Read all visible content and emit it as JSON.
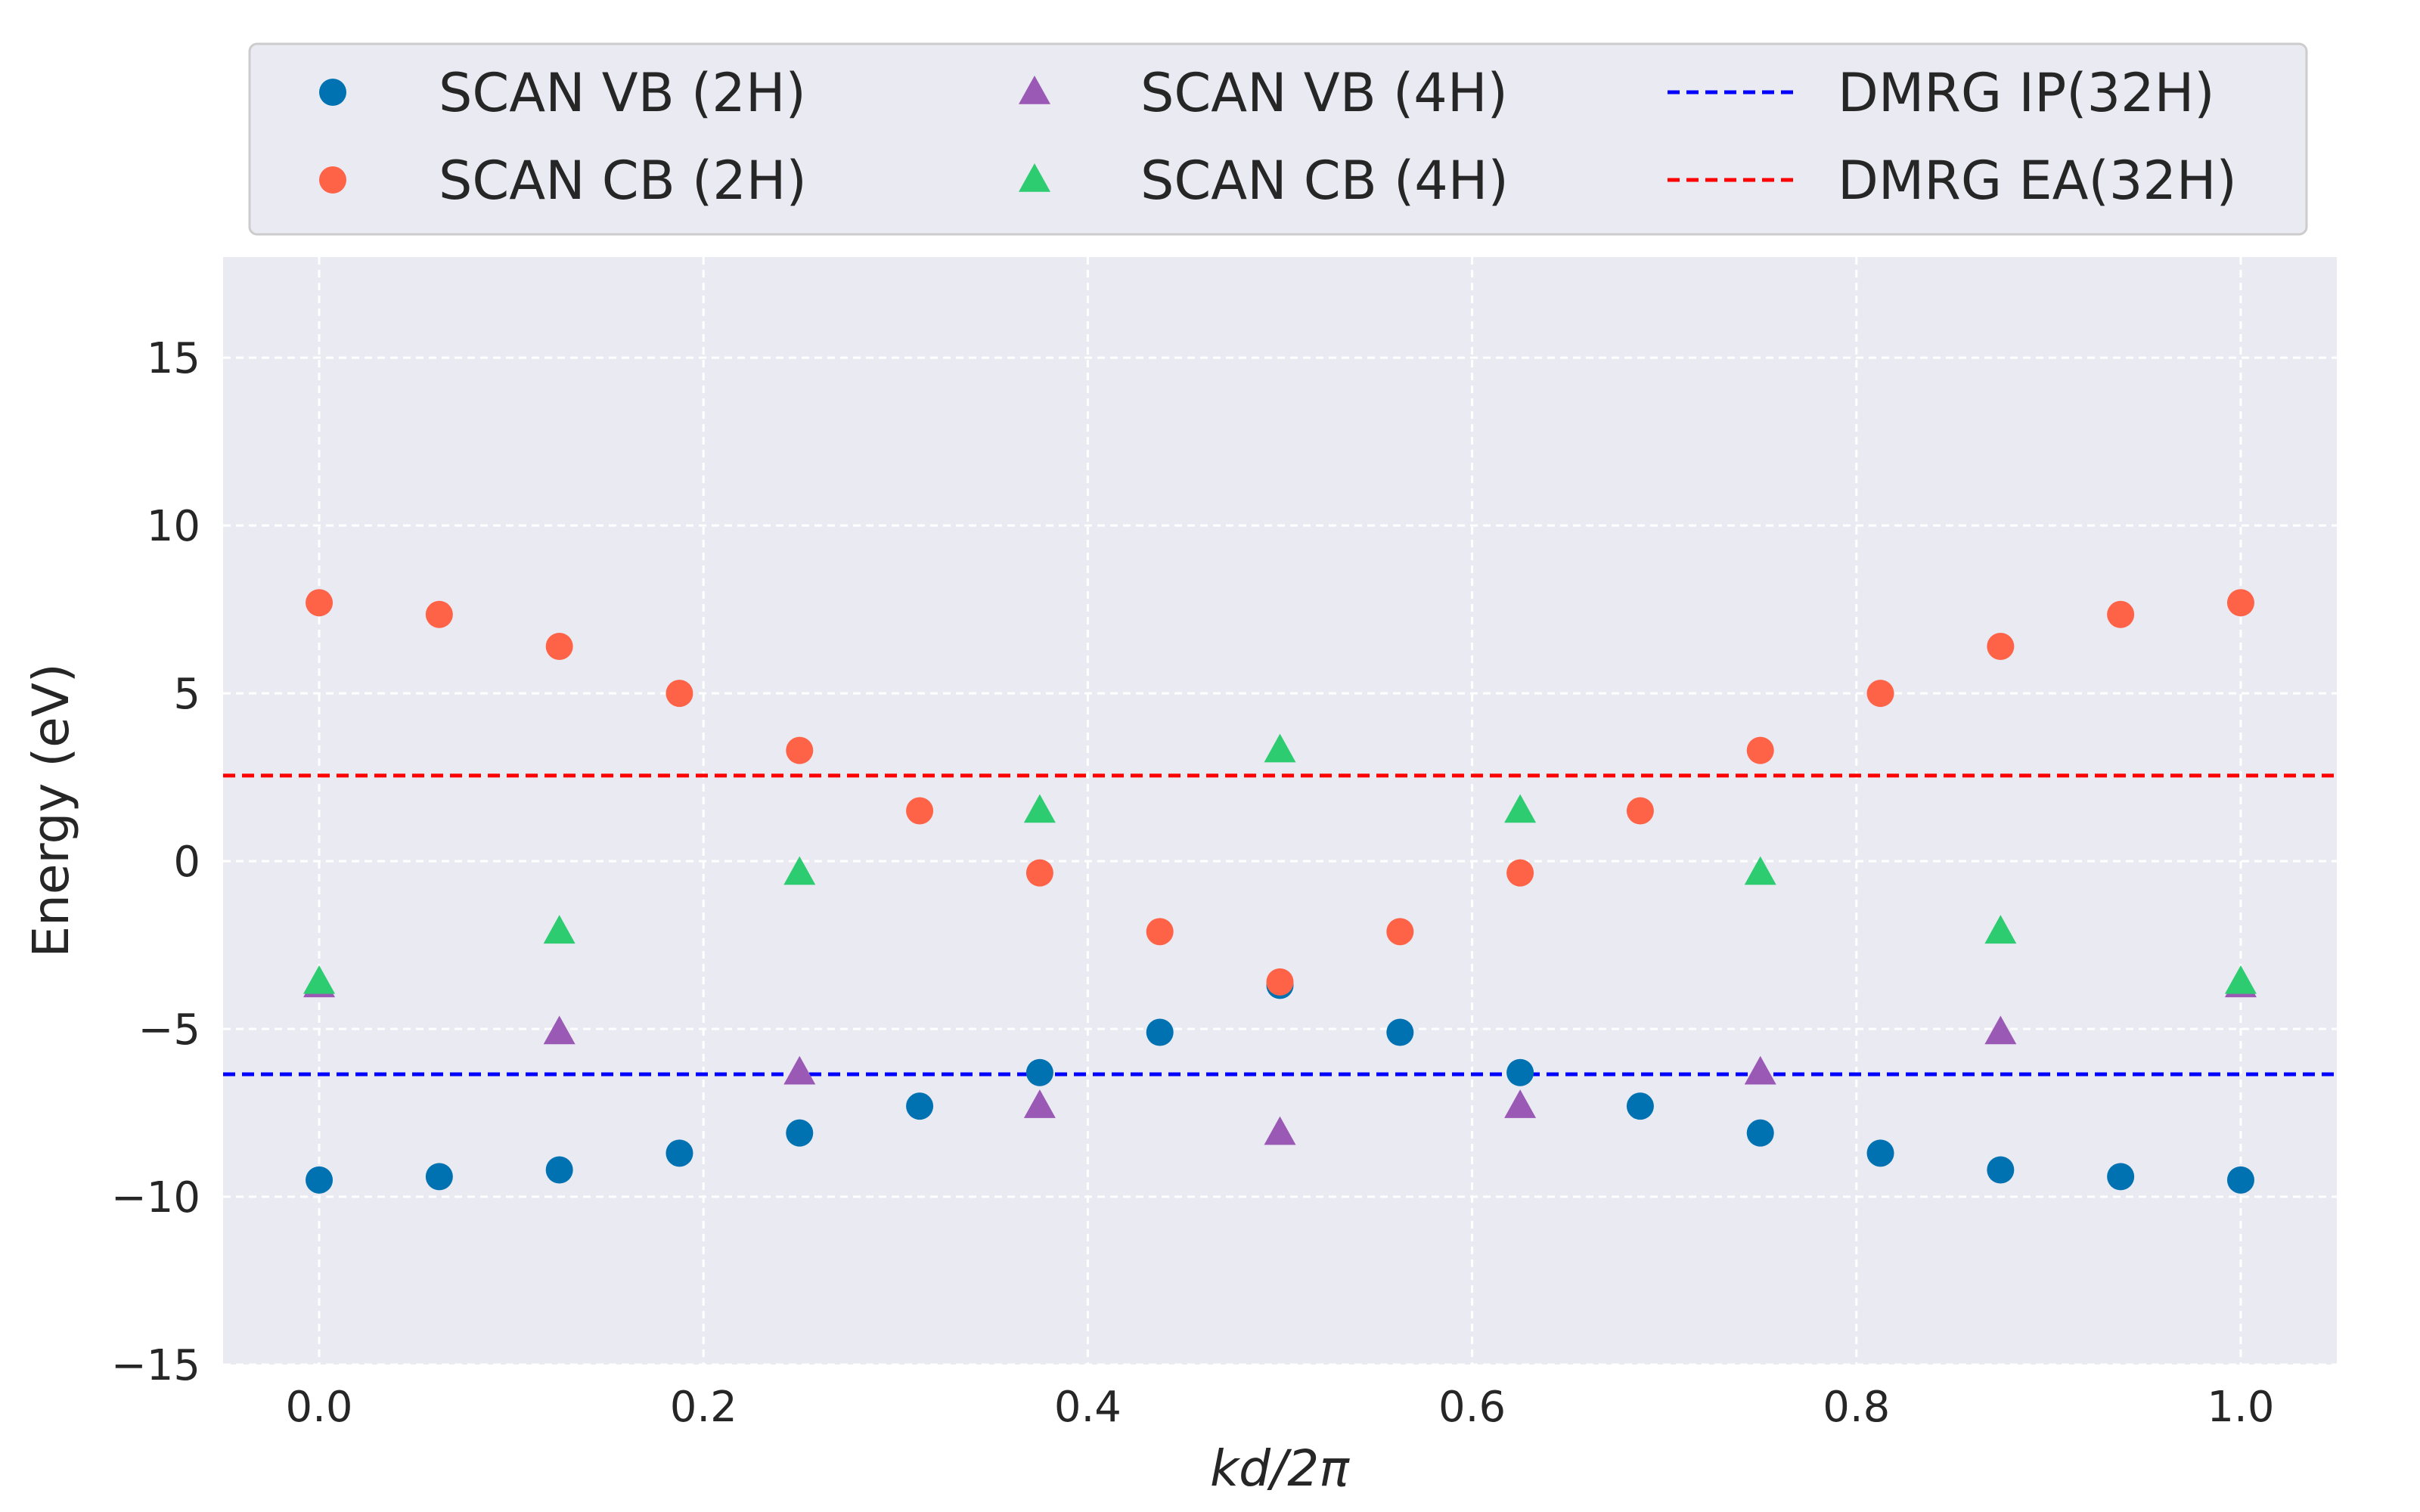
{
  "chart_data": {
    "type": "scatter",
    "xlabel": "kd/2π",
    "ylabel": "Energy (eV)",
    "xlim": [
      -0.05,
      1.05
    ],
    "ylim": [
      -15,
      18
    ],
    "xticks": [
      "0.0",
      "0.2",
      "0.4",
      "0.6",
      "0.8",
      "1.0"
    ],
    "yticks": [
      "−15",
      "−10",
      "−5",
      "0",
      "5",
      "10",
      "15"
    ],
    "grid": true,
    "legend_position": "top, above plot, 3 columns",
    "series": [
      {
        "name": "SCAN VB (2H)",
        "marker": "circle",
        "color": "#0072B2",
        "x": [
          0.0,
          0.0625,
          0.125,
          0.1875,
          0.25,
          0.3125,
          0.375,
          0.4375,
          0.5,
          0.5625,
          0.625,
          0.6875,
          0.75,
          0.8125,
          0.875,
          0.9375,
          1.0
        ],
        "y": [
          -9.5,
          -9.4,
          -9.2,
          -8.7,
          -8.1,
          -7.3,
          -6.3,
          -5.1,
          -3.7,
          -5.1,
          -6.3,
          -7.3,
          -8.1,
          -8.7,
          -9.2,
          -9.4,
          -9.5
        ]
      },
      {
        "name": "SCAN CB (2H)",
        "marker": "circle",
        "color": "#FF6347",
        "x": [
          0.0,
          0.0625,
          0.125,
          0.1875,
          0.25,
          0.3125,
          0.375,
          0.4375,
          0.5,
          0.5625,
          0.625,
          0.6875,
          0.75,
          0.8125,
          0.875,
          0.9375,
          1.0
        ],
        "y": [
          7.7,
          7.35,
          6.4,
          5.0,
          3.3,
          1.5,
          -0.35,
          -2.1,
          -3.6,
          -2.1,
          -0.35,
          1.5,
          3.3,
          5.0,
          6.4,
          7.35,
          7.7
        ]
      },
      {
        "name": "SCAN VB (4H)",
        "marker": "triangle",
        "color": "#9B59B6",
        "x": [
          0.0,
          0.125,
          0.25,
          0.375,
          0.5,
          0.625,
          0.75,
          0.875,
          1.0
        ],
        "y": [
          -3.7,
          -5.1,
          -6.3,
          -7.3,
          -8.1,
          -7.3,
          -6.3,
          -5.1,
          -3.7
        ]
      },
      {
        "name": "SCAN CB (4H)",
        "marker": "triangle",
        "color": "#2ECC71",
        "x": [
          0.0,
          0.125,
          0.25,
          0.375,
          0.5,
          0.625,
          0.75,
          0.875,
          1.0
        ],
        "y": [
          -3.6,
          -2.1,
          -0.35,
          1.5,
          3.3,
          1.5,
          -0.35,
          -2.1,
          -3.6
        ]
      }
    ],
    "hlines": [
      {
        "name": "DMRG IP(32H)",
        "y": -6.35,
        "color": "#0000FF",
        "style": "dashed"
      },
      {
        "name": "DMRG EA(32H)",
        "y": 2.55,
        "color": "#FF0000",
        "style": "dashed"
      }
    ]
  }
}
